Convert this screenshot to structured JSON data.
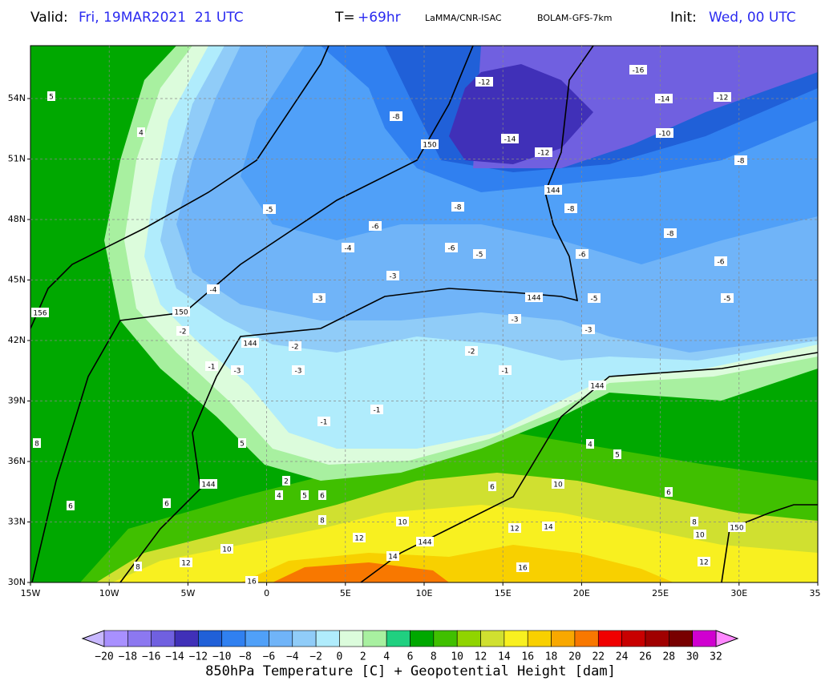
{
  "header": {
    "valid_label": "Valid:",
    "valid": "Fri, 19MAR2021  21 UTC",
    "forecast_label": "T=",
    "forecast": "+69hr",
    "source": "LaMMA/CNR-ISAC",
    "model": "BOLAM-GFS-7km",
    "init_label": "Init:",
    "init": "Wed, 00 UTC"
  },
  "map": {
    "x_ticks": [
      "15W",
      "10W",
      "5W",
      "0",
      "5E",
      "10E",
      "15E",
      "20E",
      "25E",
      "30E",
      "35E"
    ],
    "y_ticks": [
      "54N",
      "51N",
      "48N",
      "45N",
      "42N",
      "39N",
      "36N",
      "33N",
      "30N"
    ],
    "contour_labels": [
      "-16",
      "-12",
      "-14",
      "-12",
      "-8",
      "150",
      "-14",
      "-12",
      "-10",
      "-8",
      "144",
      "-5",
      "-8",
      "-8",
      "-8",
      "-6",
      "-4",
      "-6",
      "-5",
      "-6",
      "-6",
      "-3",
      "-4",
      "-3",
      "144",
      "-5",
      "-5",
      "150",
      "-2",
      "144",
      "-2",
      "-3",
      "-3",
      "-2",
      "-1",
      "-3",
      "-3",
      "-1",
      "144",
      "-1",
      "-1",
      "156",
      "5",
      "4",
      "8",
      "6",
      "5",
      "144",
      "6",
      "2",
      "4",
      "5",
      "6",
      "8",
      "6",
      "10",
      "6",
      "12",
      "14",
      "10",
      "12",
      "144",
      "14",
      "10",
      "12",
      "8",
      "16",
      "16",
      "8",
      "10",
      "150",
      "12",
      "4",
      "5"
    ]
  },
  "colorbar": {
    "levels": [
      "−20",
      "−18",
      "−16",
      "−14",
      "−12",
      "−10",
      "−8",
      "−6",
      "−4",
      "−2",
      "0",
      "2",
      "4",
      "6",
      "8",
      "10",
      "12",
      "14",
      "16",
      "18",
      "20",
      "22",
      "24",
      "26",
      "28",
      "30",
      "32"
    ],
    "colors": [
      "#a890ff",
      "#8c78f0",
      "#7060e0",
      "#4030b8",
      "#2060d8",
      "#3080f0",
      "#50a0f8",
      "#70b4f8",
      "#90ccf8",
      "#b0ecfc",
      "#dcfcdc",
      "#a8f0a0",
      "#20d080",
      "#00a800",
      "#40c000",
      "#90d400",
      "#d0e030",
      "#f8f020",
      "#f8d000",
      "#f8a800",
      "#f87800",
      "#f00000",
      "#c80000",
      "#a00000",
      "#780000",
      "#d000d0"
    ],
    "under_color": "#c8b8ff",
    "over_color": "#ff88ff",
    "title": "850hPa Temperature [C] + Geopotential Height [dam]"
  }
}
